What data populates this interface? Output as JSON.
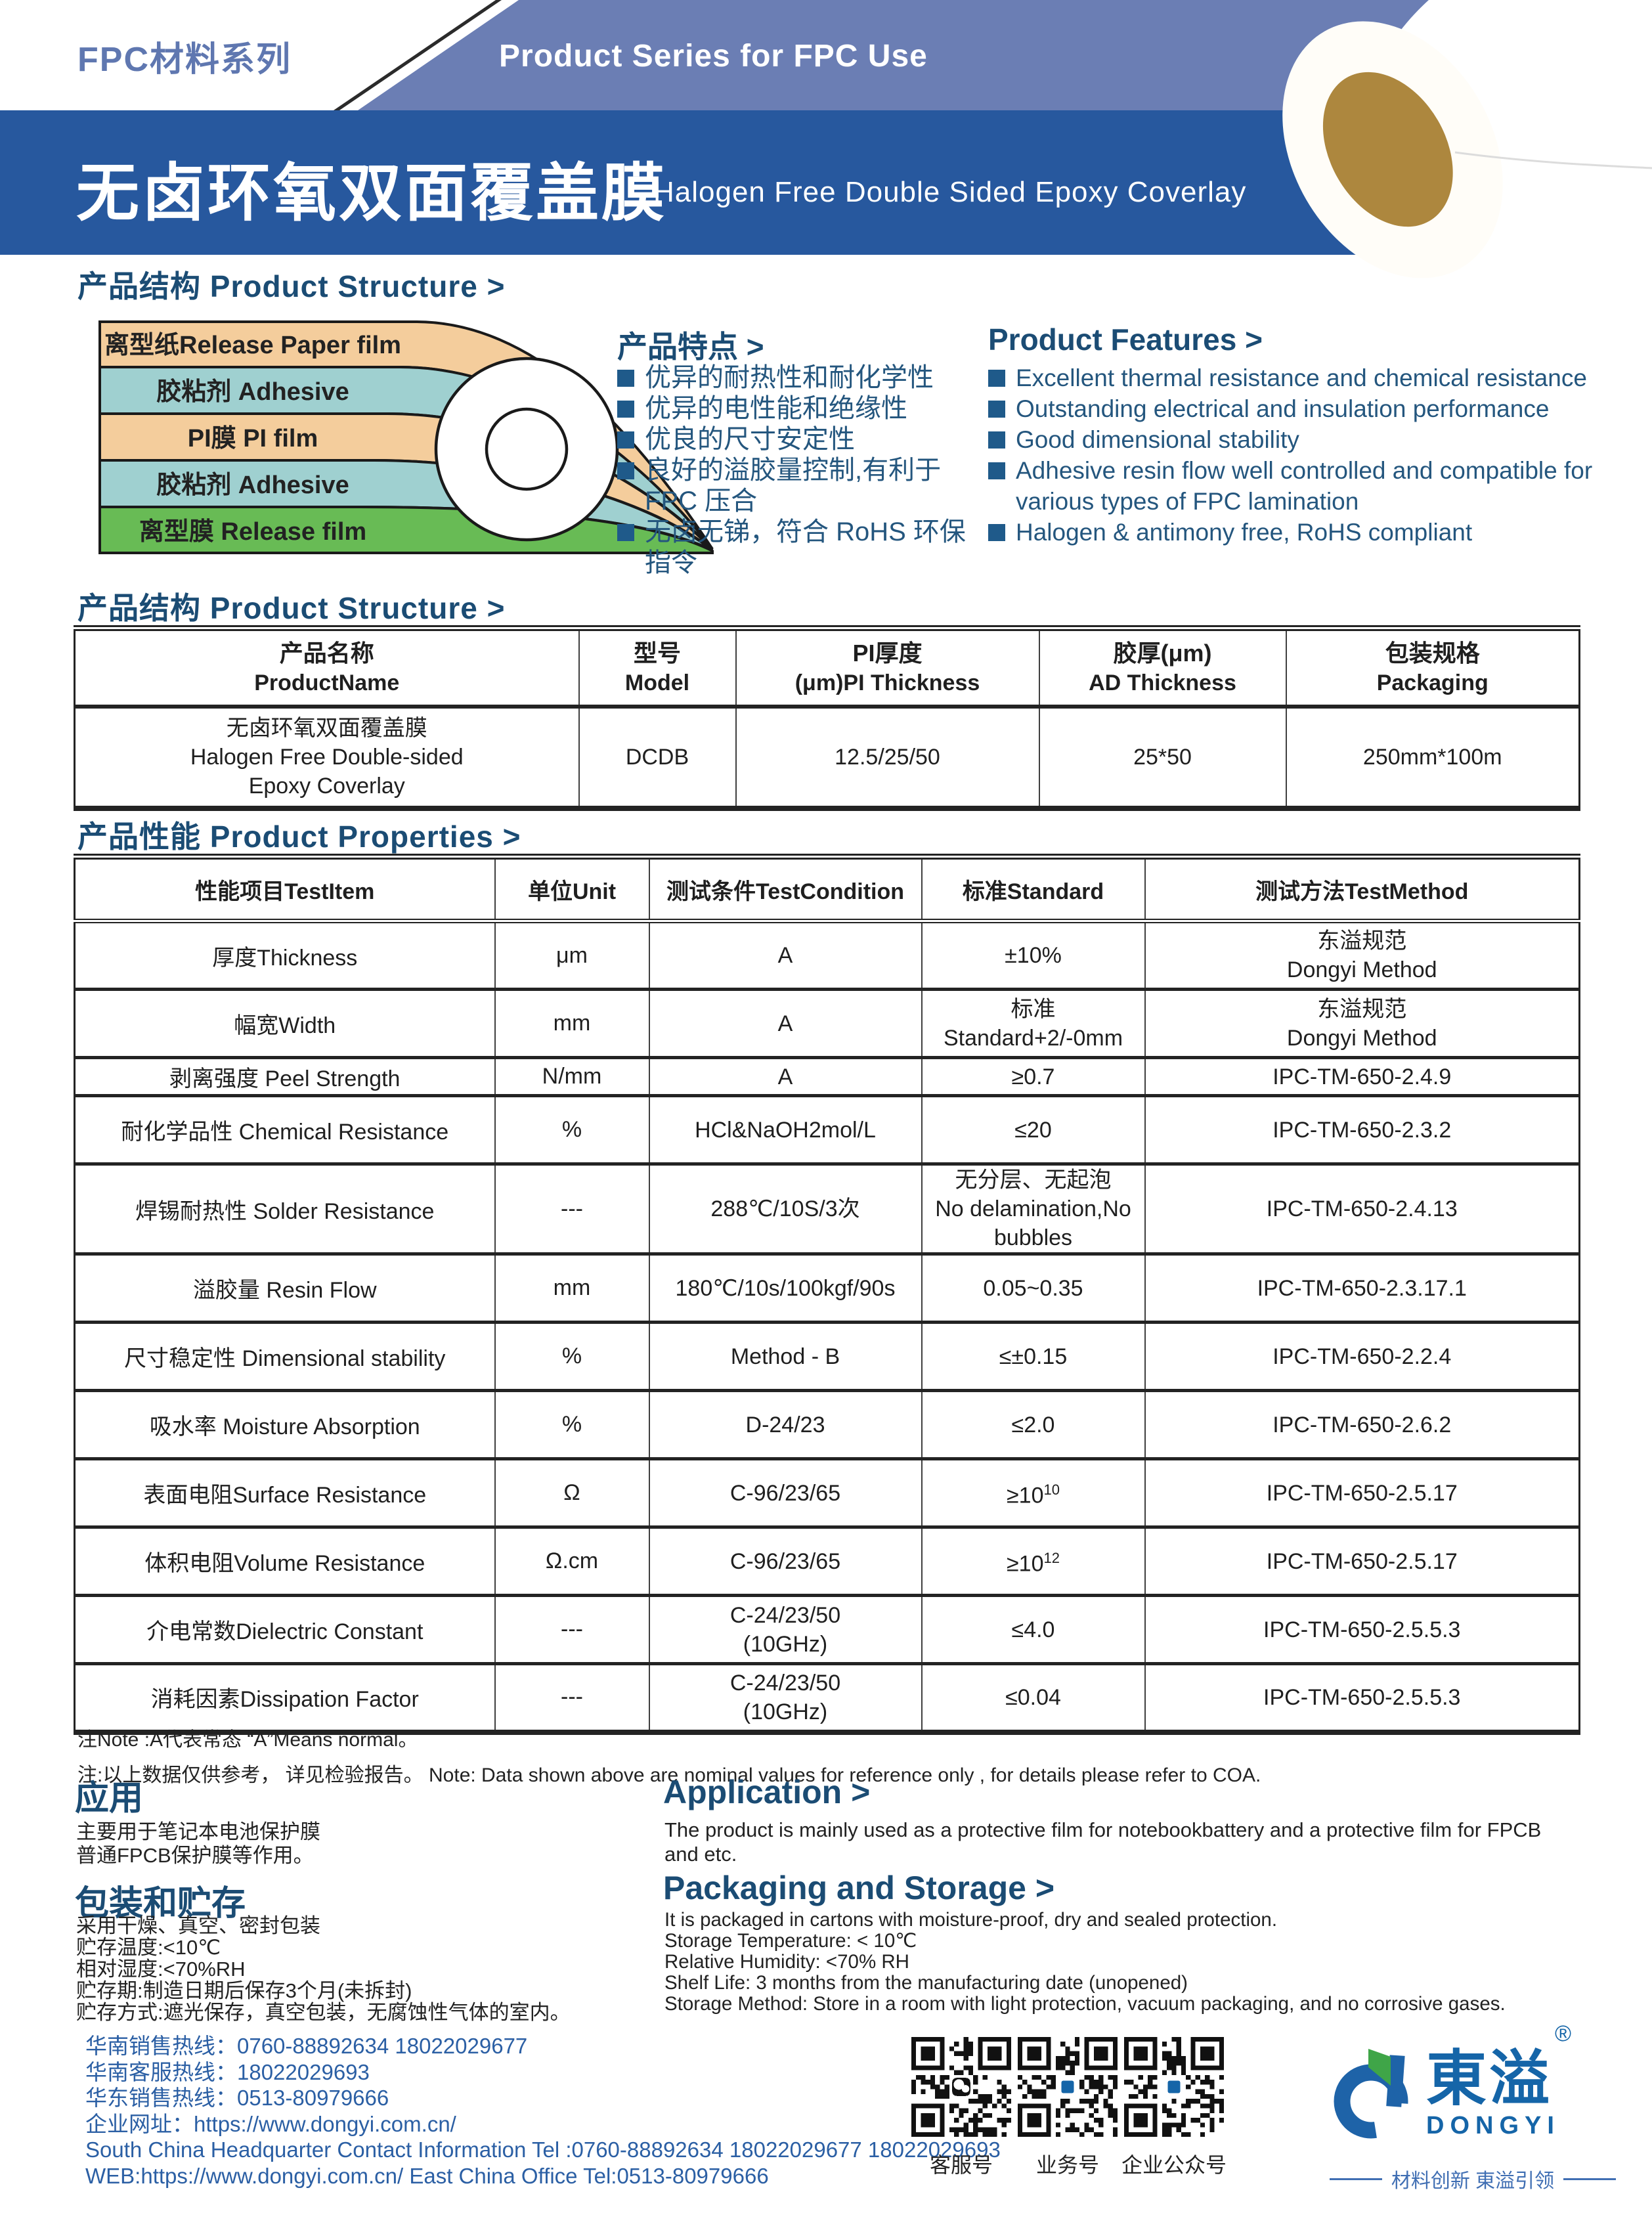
{
  "header": {
    "series_zh": "FPC材料系列",
    "series_en": "Product Series for FPC Use",
    "title_zh": "无卤环氧双面覆盖膜",
    "title_en": "Halogen Free Double Sided Epoxy Coverlay"
  },
  "sections": {
    "structure1": "产品结构 Product Structure >",
    "structure2": "产品结构 Product Structure >",
    "properties": "产品性能 Product Properties >",
    "features_zh_title": "产品特点 >",
    "features_en_title": "Product Features >",
    "application_zh_title": "应用",
    "application_en_title": "Application  >",
    "packaging_zh_title": "包装和贮存",
    "packaging_en_title": "Packaging and Storage  >"
  },
  "diagram": {
    "layers": [
      {
        "label": "离型纸Release Paper film",
        "color": "#f4cd9c"
      },
      {
        "label": "胶粘剂 Adhesive",
        "color": "#9fd0d0"
      },
      {
        "label": "PI膜 PI film",
        "color": "#f4cd9c"
      },
      {
        "label": "胶粘剂 Adhesive",
        "color": "#9fd0d0"
      },
      {
        "label": "离型膜 Release film",
        "color": "#68bb55"
      }
    ]
  },
  "features_zh": [
    "优异的耐热性和耐化学性",
    "优异的电性能和绝缘性",
    "优良的尺寸安定性",
    "良好的溢胶量控制,有利于FPC 压合",
    "无卤无锑，符合 RoHS 环保指令"
  ],
  "features_en": [
    {
      "lines": [
        "Excellent thermal resistance and chemical resistance"
      ]
    },
    {
      "lines": [
        "Outstanding electrical and insulation performance"
      ]
    },
    {
      "lines": [
        "Good dimensional stability"
      ]
    },
    {
      "lines": [
        "Adhesive resin flow well controlled and compatible for",
        "various types of FPC lamination"
      ]
    },
    {
      "lines": [
        "Halogen & antimony free, RoHS compliant"
      ]
    }
  ],
  "structure_table": {
    "headers": [
      {
        "zh": "产品名称",
        "en": "ProductName"
      },
      {
        "zh": "型号",
        "en": "Model"
      },
      {
        "zh": "PI厚度",
        "en": "(μm)PI Thickness"
      },
      {
        "zh": "胶厚(μm)",
        "en": "AD Thickness"
      },
      {
        "zh": "包装规格",
        "en": "Packaging"
      }
    ],
    "row": {
      "name_lines": [
        "无卤环氧双面覆盖膜",
        "Halogen Free Double-sided",
        "Epoxy Coverlay"
      ],
      "model": "DCDB",
      "pi_thickness": "12.5/25/50",
      "ad_thickness": "25*50",
      "packaging": "250mm*100m"
    }
  },
  "properties_table": {
    "headers": [
      "性能项目TestItem",
      "单位Unit",
      "测试条件TestCondition",
      "标准Standard",
      "测试方法TestMethod"
    ],
    "rows": [
      {
        "item": "厚度Thickness",
        "unit": "μm",
        "condition": [
          "A"
        ],
        "standard": [
          "±10%"
        ],
        "method": [
          "东溢规范",
          "Dongyi Method"
        ]
      },
      {
        "item": "幅宽Width",
        "unit": "mm",
        "condition": [
          "A"
        ],
        "standard": [
          "标准",
          "Standard+2/-0mm"
        ],
        "method": [
          "东溢规范",
          "Dongyi Method"
        ]
      },
      {
        "item": "剥离强度 Peel Strength",
        "unit": "N/mm",
        "condition": [
          "A"
        ],
        "standard": [
          "≥0.7"
        ],
        "method": [
          "IPC-TM-650-2.4.9"
        ]
      },
      {
        "item": "耐化学品性 Chemical Resistance",
        "unit": "%",
        "condition": [
          "HCl&NaOH2mol/L"
        ],
        "standard": [
          "≤20"
        ],
        "method": [
          "IPC-TM-650-2.3.2"
        ]
      },
      {
        "item": "焊锡耐热性 Solder Resistance",
        "unit": "---",
        "condition": [
          "288℃/10S/3次"
        ],
        "standard": [
          "无分层、无起泡",
          "No delamination,No bubbles"
        ],
        "method": [
          "IPC-TM-650-2.4.13"
        ]
      },
      {
        "item": "溢胶量 Resin Flow",
        "unit": "mm",
        "condition": [
          "180℃/10s/100kgf/90s"
        ],
        "standard": [
          "0.05~0.35"
        ],
        "method": [
          "IPC-TM-650-2.3.17.1"
        ]
      },
      {
        "item": "尺寸稳定性 Dimensional stability",
        "unit": "%",
        "condition": [
          "Method - B"
        ],
        "standard": [
          "≤±0.15"
        ],
        "method": [
          "IPC-TM-650-2.2.4"
        ]
      },
      {
        "item": "吸水率 Moisture Absorption",
        "unit": "%",
        "condition": [
          "D-24/23"
        ],
        "standard": [
          "≤2.0"
        ],
        "method": [
          "IPC-TM-650-2.6.2"
        ]
      },
      {
        "item": "表面电阻Surface Resistance",
        "unit": "Ω",
        "condition": [
          "C-96/23/65"
        ],
        "standard_base": "≥10",
        "standard_sup": "10",
        "method": [
          "IPC-TM-650-2.5.17"
        ]
      },
      {
        "item": "体积电阻Volume Resistance",
        "unit": "Ω.cm",
        "condition": [
          "C-96/23/65"
        ],
        "standard_base": "≥10",
        "standard_sup": "12",
        "method": [
          "IPC-TM-650-2.5.17"
        ]
      },
      {
        "item": "介电常数Dielectric Constant",
        "unit": "---",
        "condition": [
          "C-24/23/50",
          "(10GHz)"
        ],
        "standard": [
          "≤4.0"
        ],
        "method": [
          "IPC-TM-650-2.5.5.3"
        ]
      },
      {
        "item": "消耗因素Dissipation Factor",
        "unit": "---",
        "condition": [
          "C-24/23/50",
          "(10GHz)"
        ],
        "standard": [
          "≤0.04"
        ],
        "method": [
          "IPC-TM-650-2.5.5.3"
        ]
      }
    ]
  },
  "notes": [
    "注Note :A代表常态 “A”Means normal。",
    "注:以上数据仅供参考， 详见检验报告。 Note: Data shown above are nominal values for reference only , for details please refer to COA."
  ],
  "application": {
    "zh_lines": [
      "主要用于笔记本电池保护膜",
      "普通FPCB保护膜等作用。"
    ],
    "en_lines": [
      "The product is mainly used as a protective film for notebookbattery and a protective film for FPCB",
      "and etc."
    ]
  },
  "packaging": {
    "zh_lines": [
      "采用干燥、真空、密封包装",
      "贮存温度:<10℃",
      "相对湿度:<70%RH",
      "贮存期:制造日期后保存3个月(未拆封)",
      "贮存方式:遮光保存，真空包装，无腐蚀性气体的室内。"
    ],
    "en_lines": [
      "It is packaged in cartons with moisture-proof, dry and sealed protection.",
      "Storage Temperature: < 10℃",
      "Relative Humidity: <70% RH",
      "Shelf Life: 3 months from the manufacturing date (unopened)",
      "Storage Method: Store in a room with light protection, vacuum packaging, and no corrosive gases."
    ]
  },
  "footer": {
    "contact_lines": [
      "华南销售热线：0760-88892634 18022029677",
      "华南客服热线：18022029693",
      "华东销售热线：0513-80979666",
      "企业网址：https://www.dongyi.com.cn/",
      "South China Headquarter Contact Information Tel :0760-88892634 18022029677 18022029693",
      "WEB:https://www.dongyi.com.cn/   East China Office Tel:0513-80979666"
    ],
    "qr_labels": [
      "客服号",
      "业务号",
      "企业公众号"
    ],
    "logo": {
      "zh": "東溢",
      "reg": "®",
      "en": "DONGYI",
      "tagline": "材料创新  東溢引领"
    }
  },
  "colors": {
    "band_dark": "#27589e",
    "band_light": "#6b7eb4",
    "heading": "#1b4c74",
    "footer_blue": "#2b5fa4",
    "logo_blue": "#1565a8",
    "layer_tan": "#f4cd9c",
    "layer_teal": "#9fd0d0",
    "layer_green": "#68bb55",
    "roll_core": "#ad873e"
  }
}
